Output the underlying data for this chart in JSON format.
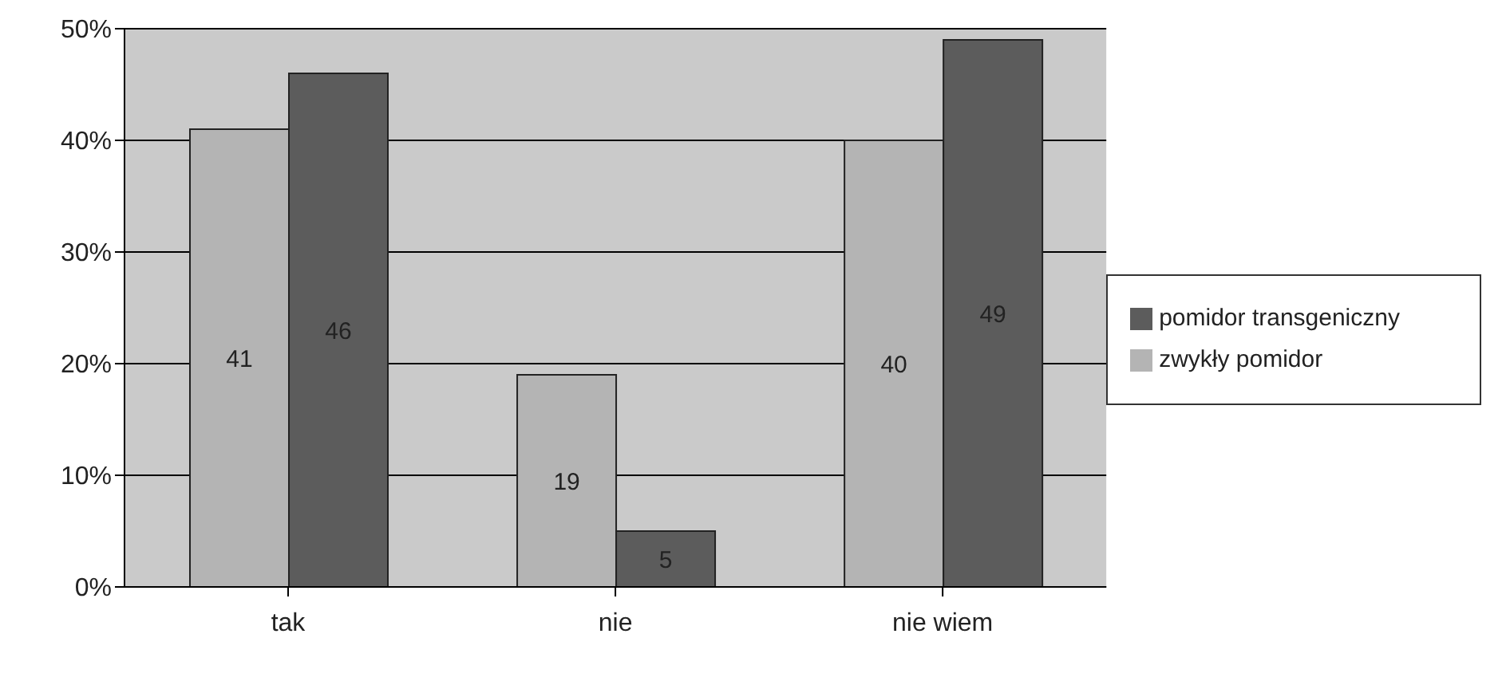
{
  "chart_data": {
    "type": "bar",
    "categories": [
      "tak",
      "nie",
      "nie wiem"
    ],
    "series": [
      {
        "name": "zwykły pomidor",
        "color": "#b4b4b4",
        "values": [
          41,
          19,
          40
        ]
      },
      {
        "name": "pomidor transgeniczny",
        "color": "#5c5c5c",
        "values": [
          46,
          5,
          49
        ]
      }
    ],
    "ylim": [
      0,
      50
    ],
    "yticks": [
      {
        "value": 0,
        "label": "0%"
      },
      {
        "value": 10,
        "label": "10%"
      },
      {
        "value": 20,
        "label": "20%"
      },
      {
        "value": 30,
        "label": "30%"
      },
      {
        "value": 40,
        "label": "40%"
      },
      {
        "value": 50,
        "label": "50%"
      }
    ],
    "grid": "y",
    "legend": "right",
    "data_labels": true
  }
}
